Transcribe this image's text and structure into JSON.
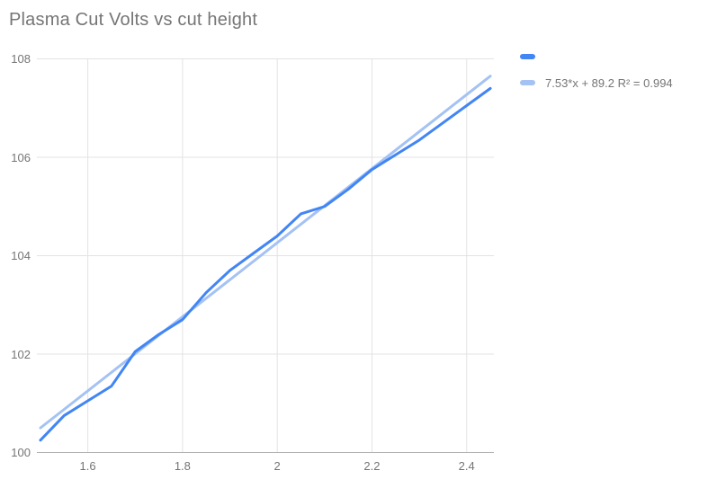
{
  "title": "Plasma Cut Volts vs cut height",
  "colors": {
    "series": "#4285f4",
    "trendline": "#a4c2f4",
    "grid": "#e3e3e3",
    "axis": "#b3b3b3",
    "text": "#757575"
  },
  "legend": {
    "items": [
      {
        "label": "",
        "color": "#4285f4"
      },
      {
        "label": "7.53*x + 89.2 R² = 0.994",
        "color": "#a4c2f4"
      }
    ]
  },
  "chart_data": {
    "type": "line",
    "title": "Plasma Cut Volts vs cut height",
    "xlabel": "",
    "ylabel": "",
    "xlim": [
      1.4925,
      2.4575
    ],
    "ylim": [
      100,
      108
    ],
    "x_ticks": [
      1.6,
      1.8,
      2,
      2.2,
      2.4
    ],
    "y_ticks": [
      100,
      102,
      104,
      106,
      108
    ],
    "grid": true,
    "legend_position": "top-right",
    "series": [
      {
        "name": "",
        "role": "data",
        "color": "#4285f4",
        "width": 3,
        "x": [
          1.5,
          1.55,
          1.6,
          1.65,
          1.7,
          1.75,
          1.8,
          1.85,
          1.9,
          1.95,
          2.0,
          2.05,
          2.1,
          2.15,
          2.2,
          2.25,
          2.3,
          2.35,
          2.4,
          2.45
        ],
        "y": [
          100.25,
          100.75,
          101.05,
          101.35,
          102.05,
          102.4,
          102.7,
          103.25,
          103.7,
          104.05,
          104.4,
          104.85,
          105.0,
          105.35,
          105.75,
          106.05,
          106.35,
          106.7,
          107.05,
          107.4
        ]
      },
      {
        "name": "7.53*x + 89.2 R² = 0.994",
        "role": "trendline",
        "equation": "7.53*x + 89.2",
        "r_squared": 0.994,
        "color": "#a4c2f4",
        "width": 3,
        "x": [
          1.5,
          2.45
        ],
        "y": [
          100.5,
          107.65
        ]
      }
    ]
  }
}
